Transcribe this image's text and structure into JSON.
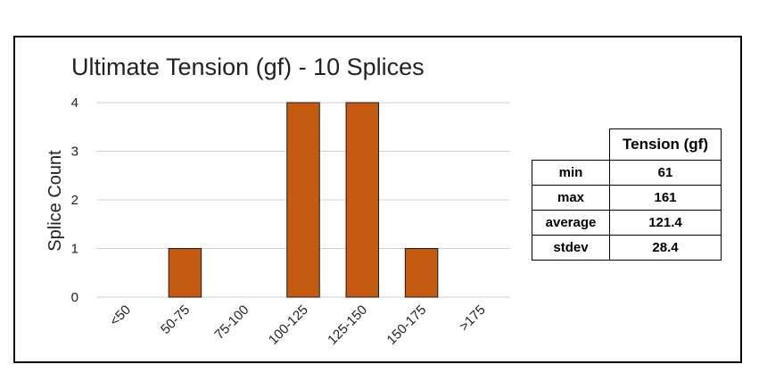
{
  "chart_data": {
    "type": "bar",
    "title": "Ultimate Tension (gf) - 10 Splices",
    "xlabel": "",
    "ylabel": "Splice Count",
    "categories": [
      "<50",
      "50-75",
      "75-100",
      "100-125",
      "125-150",
      "150-175",
      ">175"
    ],
    "values": [
      0,
      1,
      0,
      4,
      4,
      1,
      0
    ],
    "ylim": [
      0,
      4
    ],
    "yticks": [
      0,
      1,
      2,
      3,
      4
    ],
    "grid": true,
    "bar_color": "#C55A11"
  },
  "stats_table": {
    "header": "Tension (gf)",
    "rows": [
      {
        "label": "min",
        "value": "61"
      },
      {
        "label": "max",
        "value": "161"
      },
      {
        "label": "average",
        "value": "121.4"
      },
      {
        "label": "stdev",
        "value": "28.4"
      }
    ]
  }
}
